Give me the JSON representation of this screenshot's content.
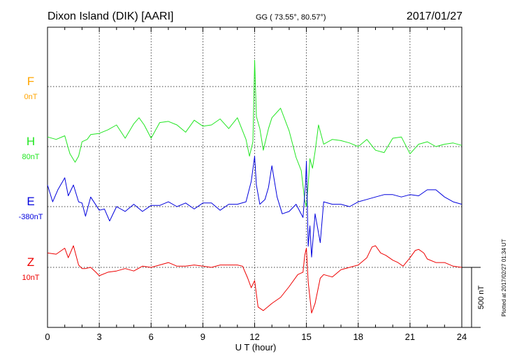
{
  "header": {
    "station": "Dixon Island (DIK)  [AARI]",
    "coords": "GG ( 73.55°,  80.57°)",
    "date": "2017/01/27"
  },
  "footer": {
    "plotted": "Plotted at 2017/02/27 01:34 UT"
  },
  "chart_data": {
    "type": "line",
    "xlabel": "U T (hour)",
    "xlim": [
      0,
      24
    ],
    "xticks": [
      "0",
      "3",
      "6",
      "9",
      "12",
      "15",
      "18",
      "21",
      "24"
    ],
    "scale_label": "500 nT",
    "scale_nT": 500,
    "grid": true,
    "series": [
      {
        "name": "F",
        "baseline": "0nT",
        "color": "#ffa500",
        "values": []
      },
      {
        "name": "H",
        "baseline": "80nT",
        "color": "#22e622",
        "x": [
          0,
          0.5,
          1.0,
          1.3,
          1.6,
          1.8,
          2.0,
          2.3,
          2.5,
          3.0,
          3.5,
          4.0,
          4.5,
          5.0,
          5.3,
          5.6,
          6.0,
          6.5,
          7.0,
          7.5,
          8.0,
          8.5,
          9.0,
          9.5,
          10.0,
          10.5,
          11.0,
          11.5,
          11.7,
          11.9,
          12.0,
          12.1,
          12.3,
          12.5,
          12.8,
          13.0,
          13.5,
          14.0,
          14.4,
          14.7,
          14.9,
          15.0,
          15.1,
          15.2,
          15.35,
          15.5,
          15.7,
          16.0,
          16.5,
          17.0,
          17.5,
          18.0,
          18.5,
          19.0,
          19.5,
          20.0,
          20.5,
          21.0,
          21.5,
          22.0,
          22.5,
          23.0,
          23.5,
          24.0
        ],
        "y": [
          80,
          60,
          90,
          -60,
          -130,
          -80,
          40,
          60,
          100,
          110,
          140,
          180,
          70,
          190,
          240,
          180,
          70,
          200,
          210,
          180,
          120,
          220,
          170,
          180,
          230,
          150,
          240,
          60,
          -80,
          40,
          720,
          250,
          150,
          -30,
          150,
          240,
          320,
          130,
          -90,
          -200,
          -450,
          -500,
          -320,
          -100,
          -180,
          -40,
          180,
          20,
          60,
          50,
          30,
          0,
          60,
          -30,
          -50,
          70,
          80,
          -60,
          20,
          40,
          0,
          20,
          30,
          10
        ]
      },
      {
        "name": "E",
        "baseline": "-380nT",
        "color": "#0000dd",
        "x": [
          0,
          0.3,
          0.6,
          1.0,
          1.2,
          1.5,
          1.8,
          2.0,
          2.2,
          2.5,
          3.0,
          3.3,
          3.6,
          4.0,
          4.5,
          5.0,
          5.5,
          6.0,
          6.5,
          7.0,
          7.5,
          8.0,
          8.5,
          9.0,
          9.5,
          10.0,
          10.5,
          11.0,
          11.5,
          11.8,
          12.0,
          12.1,
          12.3,
          12.6,
          12.8,
          13.0,
          13.3,
          13.6,
          14.0,
          14.4,
          14.8,
          14.95,
          15.0,
          15.1,
          15.2,
          15.3,
          15.5,
          15.8,
          16.0,
          16.5,
          17.0,
          17.5,
          18.0,
          18.5,
          19.0,
          19.5,
          20.0,
          20.5,
          21.0,
          21.5,
          22.0,
          22.5,
          23.0,
          23.5,
          24.0
        ],
        "y": [
          180,
          40,
          140,
          240,
          90,
          180,
          40,
          30,
          -80,
          80,
          -30,
          -20,
          -120,
          0,
          -40,
          20,
          -40,
          10,
          10,
          40,
          0,
          30,
          -20,
          30,
          30,
          -30,
          20,
          20,
          40,
          210,
          420,
          180,
          20,
          60,
          160,
          340,
          80,
          -60,
          -40,
          20,
          -90,
          200,
          380,
          -330,
          -160,
          -420,
          -60,
          -300,
          40,
          20,
          20,
          0,
          40,
          60,
          80,
          100,
          100,
          80,
          100,
          90,
          140,
          140,
          80,
          40,
          20
        ]
      },
      {
        "name": "Z",
        "baseline": "10nT",
        "color": "#ee0000",
        "x": [
          0,
          0.5,
          1.0,
          1.2,
          1.5,
          1.8,
          2.0,
          2.2,
          2.5,
          2.8,
          3.0,
          3.5,
          4.0,
          4.5,
          5.0,
          5.5,
          6.0,
          6.5,
          7.0,
          7.5,
          8.0,
          8.5,
          9.0,
          9.5,
          10.0,
          10.5,
          11.0,
          11.3,
          11.6,
          11.8,
          12.0,
          12.2,
          12.5,
          13.0,
          13.5,
          14.0,
          14.5,
          14.8,
          14.9,
          15.0,
          15.1,
          15.3,
          15.5,
          15.8,
          16.0,
          16.5,
          17.0,
          17.5,
          18.0,
          18.5,
          18.8,
          19.0,
          19.3,
          19.6,
          20.0,
          20.3,
          20.6,
          21.0,
          21.3,
          21.5,
          21.8,
          22.0,
          22.5,
          23.0,
          23.5,
          24.0
        ],
        "y": [
          120,
          110,
          160,
          80,
          180,
          20,
          -10,
          -10,
          0,
          -40,
          -70,
          -40,
          -30,
          -10,
          -30,
          10,
          0,
          20,
          40,
          10,
          10,
          20,
          10,
          0,
          20,
          20,
          20,
          10,
          -90,
          -170,
          -110,
          -330,
          -360,
          -300,
          -250,
          -160,
          -60,
          -40,
          100,
          160,
          -120,
          -380,
          -300,
          -90,
          -60,
          -80,
          -20,
          0,
          20,
          80,
          170,
          180,
          120,
          100,
          60,
          40,
          10,
          80,
          140,
          150,
          120,
          70,
          40,
          40,
          10,
          0
        ]
      }
    ]
  }
}
